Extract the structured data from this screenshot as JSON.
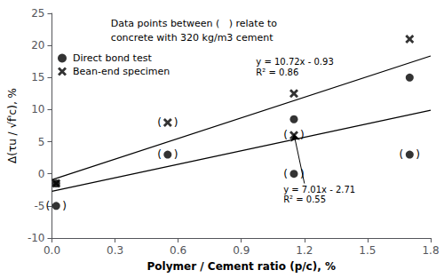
{
  "chart_data": {
    "type": "scatter",
    "xlabel": "Polymer / Cement ratio (p/c), %",
    "ylabel": "Δ(τu / √f'c), %",
    "xlim": [
      0.0,
      1.8
    ],
    "ylim": [
      -10,
      25
    ],
    "xticks": [
      {
        "value": 0.0,
        "label": "0.0"
      },
      0.3,
      0.6,
      0.9,
      1.2,
      1.5,
      1.8
    ],
    "yticks": [
      -10,
      -5,
      0,
      5,
      10,
      15,
      20,
      25
    ],
    "grid": false,
    "legend": "upper left",
    "brackets": [
      "(",
      ")"
    ],
    "series": [
      {
        "name": "Direct bond test",
        "type": "scatter",
        "marker": "circle",
        "color": "#000000",
        "x": [
          0.02,
          0.02,
          0.55,
          1.15,
          1.15,
          1.7,
          1.7
        ],
        "values": [
          -1.5,
          -5.0,
          3.0,
          8.5,
          0.0,
          15.0,
          3.0
        ],
        "bracketed": [
          false,
          true,
          true,
          false,
          true,
          false,
          true
        ]
      },
      {
        "name": "Bean-end specimen",
        "type": "scatter",
        "marker": "x",
        "color": "#000000",
        "x": [
          0.02,
          0.55,
          1.15,
          1.15,
          1.7
        ],
        "values": [
          -1.5,
          8.0,
          12.5,
          6.0,
          21.0
        ],
        "bracketed": [
          false,
          true,
          false,
          true,
          false
        ]
      },
      {
        "type": "line",
        "color": "#000000",
        "x": [
          0.0,
          1.8
        ],
        "values": [
          -0.93,
          18.363
        ]
      },
      {
        "type": "line",
        "color": "#000000",
        "x": [
          0.0,
          1.8
        ],
        "values": [
          -2.71,
          9.908
        ]
      }
    ],
    "annotations": [
      {
        "text": "y = 10.72x - 0.93",
        "x": 0.97,
        "y": 17.5
      },
      {
        "text": "R² = 0.86",
        "x": 0.97,
        "y": 15.8
      },
      {
        "text": "y = 7.01x - 2.71",
        "x": 1.1,
        "y": -2.5
      },
      {
        "text": "R² = 0.55",
        "x": 1.1,
        "y": -4.0
      },
      {
        "text": "Data points between (   ) relate to\nconcrete with 320 kg/m3 cement",
        "x": 0.28,
        "y": 24.5
      }
    ],
    "arrows": [
      {
        "from": [
          1.2,
          -1.5
        ],
        "to": [
          1.15,
          6.2
        ]
      }
    ]
  }
}
